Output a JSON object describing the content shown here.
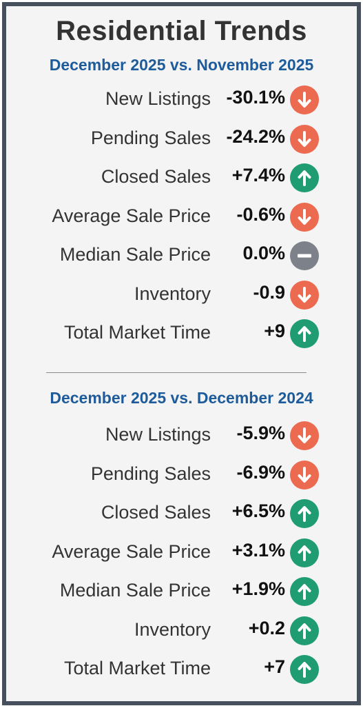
{
  "title": "Residential Trends",
  "colors": {
    "down": "#ec6a4f",
    "up": "#1f9c72",
    "flat": "#7d8189",
    "section_title": "#1d5b9a",
    "border": "#46505d"
  },
  "sections": [
    {
      "title": "December 2025 vs. November 2025",
      "rows": [
        {
          "label": "New Listings",
          "value": "-30.1%",
          "trend": "down",
          "icon": "arrow-down-icon"
        },
        {
          "label": "Pending Sales",
          "value": "-24.2%",
          "trend": "down",
          "icon": "arrow-down-icon"
        },
        {
          "label": "Closed Sales",
          "value": "+7.4%",
          "trend": "up",
          "icon": "arrow-up-icon"
        },
        {
          "label": "Average Sale Price",
          "value": "-0.6%",
          "trend": "down",
          "icon": "arrow-down-icon"
        },
        {
          "label": "Median Sale Price",
          "value": "0.0%",
          "trend": "flat",
          "icon": "minus-icon"
        },
        {
          "label": "Inventory",
          "value": "-0.9",
          "trend": "down",
          "icon": "arrow-down-icon"
        },
        {
          "label": "Total Market Time",
          "value": "+9",
          "trend": "up",
          "icon": "arrow-up-icon"
        }
      ]
    },
    {
      "title": "December 2025 vs. December 2024",
      "rows": [
        {
          "label": "New Listings",
          "value": "-5.9%",
          "trend": "down",
          "icon": "arrow-down-icon"
        },
        {
          "label": "Pending Sales",
          "value": "-6.9%",
          "trend": "down",
          "icon": "arrow-down-icon"
        },
        {
          "label": "Closed Sales",
          "value": "+6.5%",
          "trend": "up",
          "icon": "arrow-up-icon"
        },
        {
          "label": "Average Sale Price",
          "value": "+3.1%",
          "trend": "up",
          "icon": "arrow-up-icon"
        },
        {
          "label": "Median Sale Price",
          "value": "+1.9%",
          "trend": "up",
          "icon": "arrow-up-icon"
        },
        {
          "label": "Inventory",
          "value": "+0.2",
          "trend": "up",
          "icon": "arrow-up-icon"
        },
        {
          "label": "Total Market Time",
          "value": "+7",
          "trend": "up",
          "icon": "arrow-up-icon"
        }
      ]
    }
  ]
}
